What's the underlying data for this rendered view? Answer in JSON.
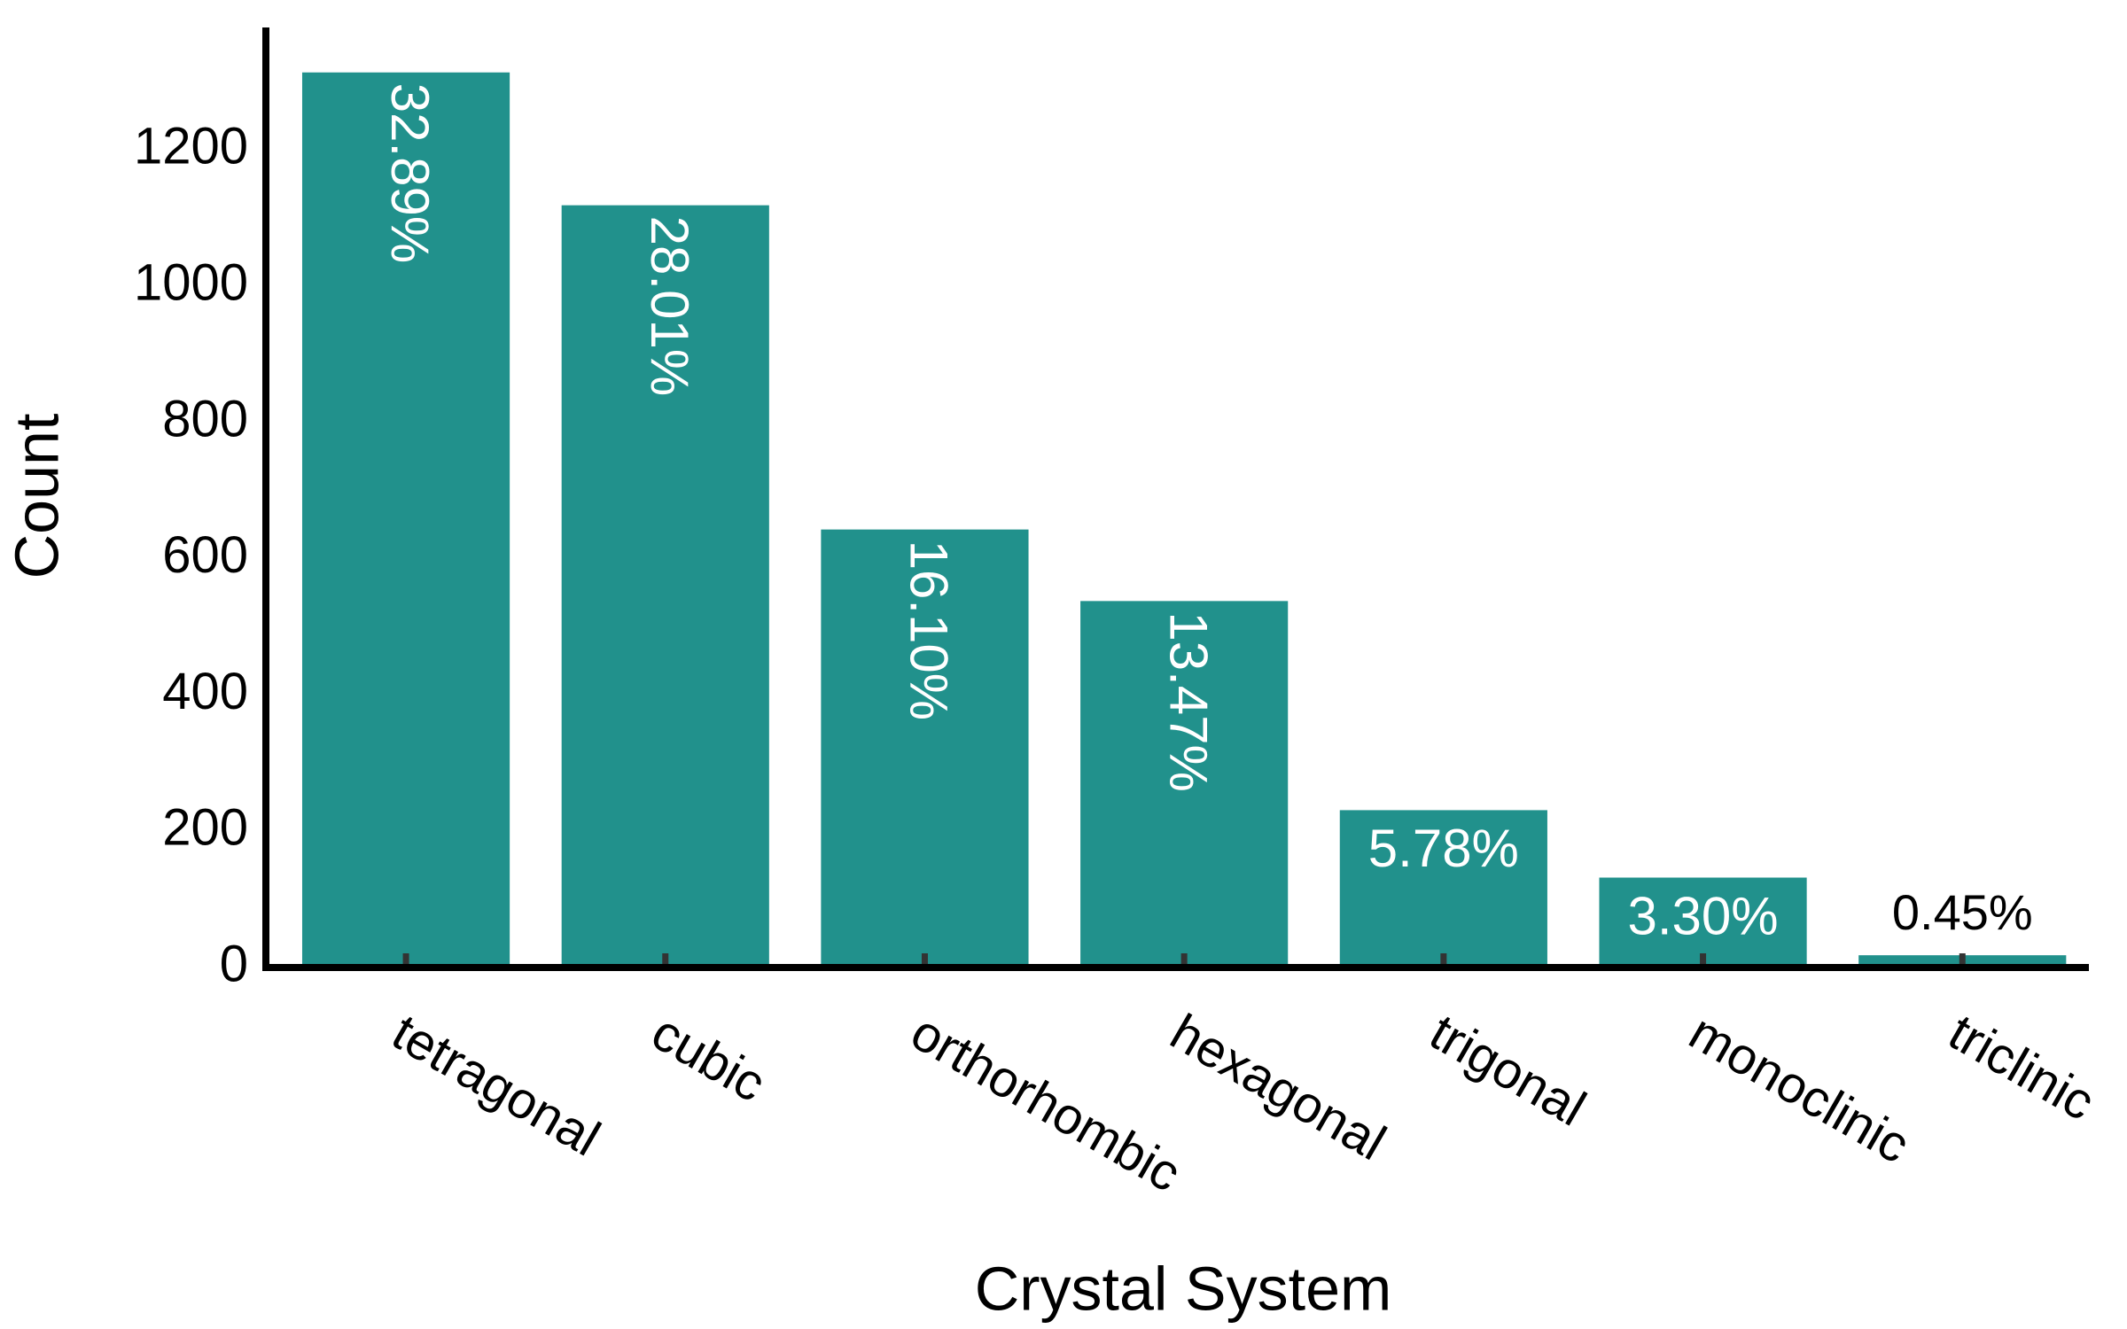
{
  "chart_data": {
    "type": "bar",
    "x_label": "Crystal System",
    "y_label": "Count",
    "categories": [
      "tetragonal",
      "cubic",
      "orthorhombic",
      "hexagonal",
      "trigonal",
      "monoclinic",
      "triclinic"
    ],
    "values": [
      1314,
      1119,
      643,
      538,
      231,
      132,
      18
    ],
    "bar_labels": [
      "32.89%",
      "28.01%",
      "16.10%",
      "13.47%",
      "5.78%",
      "3.30%",
      "0.45%"
    ],
    "color": "#21918c",
    "ylim": [
      0,
      1380
    ],
    "yticks": [
      0,
      200,
      400,
      600,
      800,
      1000,
      1200
    ]
  }
}
